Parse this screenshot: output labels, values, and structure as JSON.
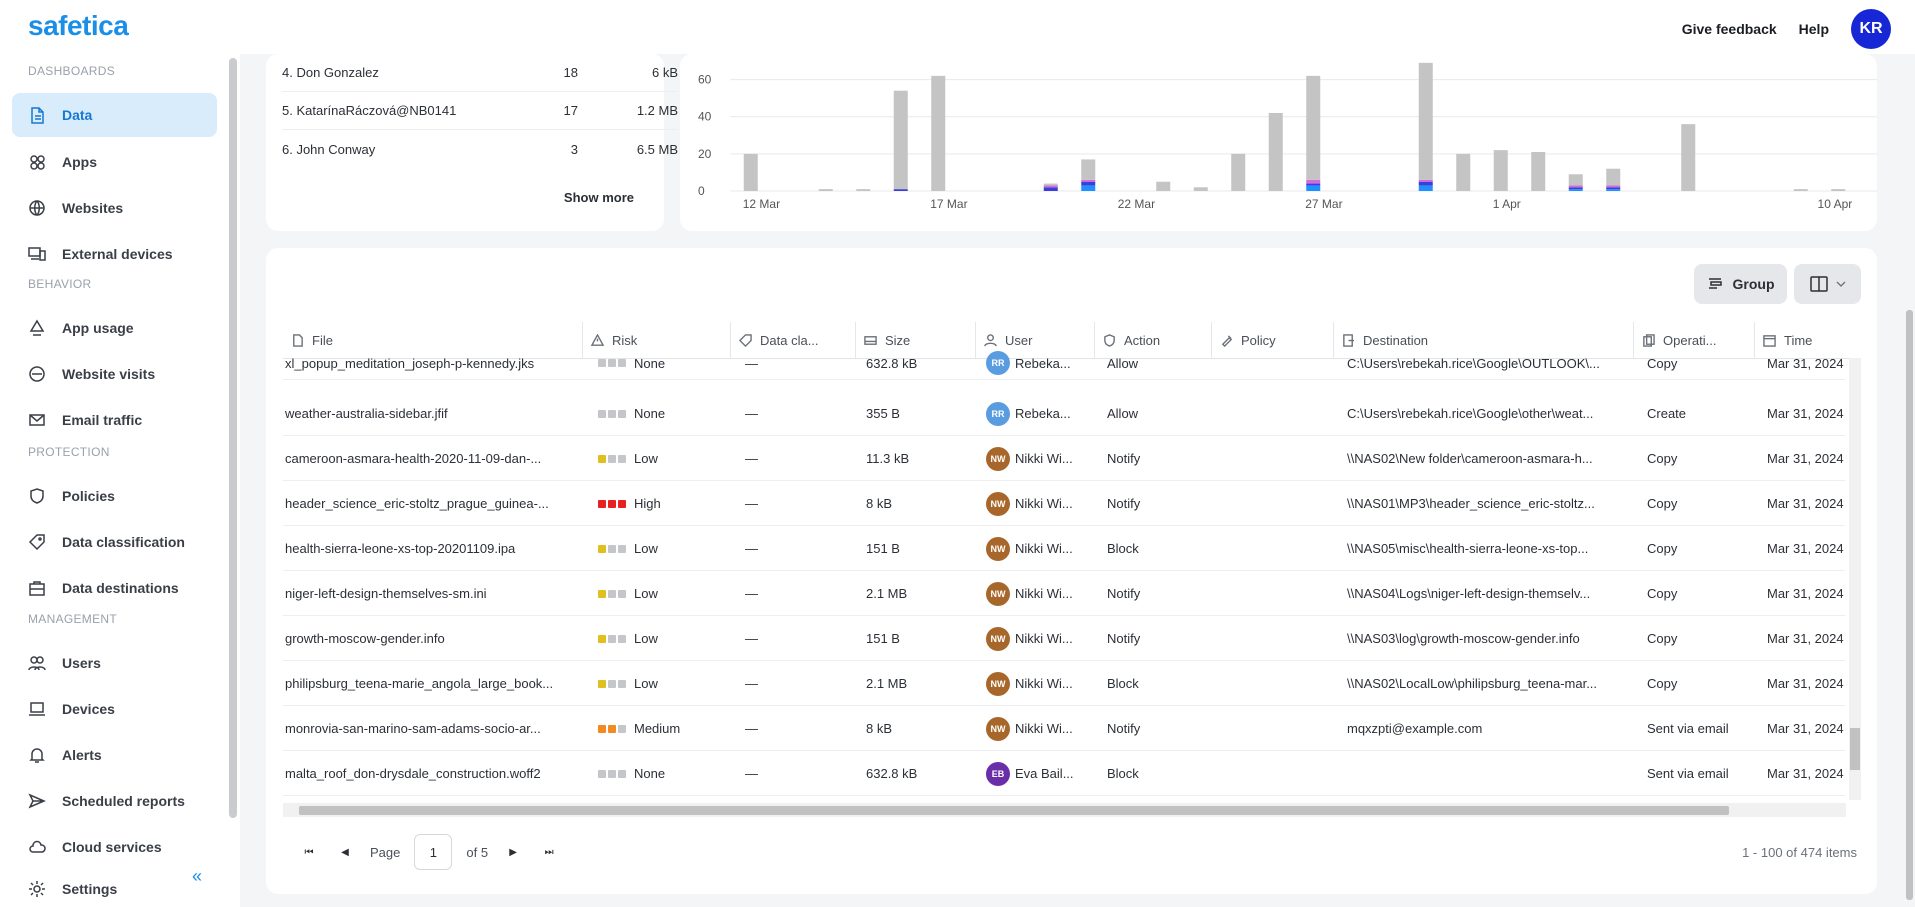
{
  "app": {
    "logo": "safetica",
    "feedback": "Give feedback",
    "help": "Help",
    "avatar": "KR"
  },
  "colors": {
    "accent": "#1b8fe8",
    "active_bg": "#d8ecfb",
    "avatar": "#1727d6"
  },
  "sidebar": {
    "sections": {
      "dashboards": "DASHBOARDS",
      "behavior": "BEHAVIOR",
      "protection": "PROTECTION",
      "management": "MANAGEMENT"
    },
    "items": [
      {
        "label": "Data",
        "icon": "document-icon"
      },
      {
        "label": "Apps",
        "icon": "apps-icon"
      },
      {
        "label": "Websites",
        "icon": "globe-icon"
      },
      {
        "label": "External devices",
        "icon": "devices-icon"
      },
      {
        "label": "App usage",
        "icon": "app-usage-icon"
      },
      {
        "label": "Website visits",
        "icon": "browser-icon"
      },
      {
        "label": "Email traffic",
        "icon": "mail-icon"
      },
      {
        "label": "Policies",
        "icon": "shield-icon"
      },
      {
        "label": "Data classification",
        "icon": "tag-icon"
      },
      {
        "label": "Data destinations",
        "icon": "briefcase-icon"
      },
      {
        "label": "Users",
        "icon": "users-icon"
      },
      {
        "label": "Devices",
        "icon": "laptop-icon"
      },
      {
        "label": "Alerts",
        "icon": "bell-icon"
      },
      {
        "label": "Scheduled reports",
        "icon": "send-icon"
      },
      {
        "label": "Cloud services",
        "icon": "cloud-icon"
      },
      {
        "label": "Settings",
        "icon": "gear-icon"
      }
    ]
  },
  "top_users": {
    "rows": [
      {
        "name": "4. Don Gonzalez",
        "count": "18",
        "size": "6 kB"
      },
      {
        "name": "5. KatarínaRáczová@NB0141",
        "count": "17",
        "size": "1.2 MB"
      },
      {
        "name": "6. John Conway",
        "count": "3",
        "size": "6.5 MB"
      }
    ],
    "show_more": "Show more"
  },
  "chart_data": {
    "type": "bar",
    "stacked": true,
    "ylim": [
      0,
      70
    ],
    "yticks": [
      "0",
      "20",
      "40",
      "60"
    ],
    "xtick_labels": [
      "12 Mar",
      "17 Mar",
      "22 Mar",
      "27 Mar",
      "1 Apr",
      "10 Apr"
    ],
    "xtick_index": [
      0,
      5,
      10,
      15,
      20,
      29
    ],
    "categories": [
      "12 Mar",
      "13 Mar",
      "14 Mar",
      "15 Mar",
      "16 Mar",
      "17 Mar",
      "18 Mar",
      "19 Mar",
      "20 Mar",
      "21 Mar",
      "22 Mar",
      "23 Mar",
      "24 Mar",
      "25 Mar",
      "26 Mar",
      "27 Mar",
      "28 Mar",
      "29 Mar",
      "30 Mar",
      "31 Mar",
      "1 Apr",
      "2 Apr",
      "3 Apr",
      "4 Apr",
      "5 Apr",
      "6 Apr",
      "7 Apr",
      "8 Apr",
      "9 Apr",
      "10 Apr"
    ],
    "series": [
      {
        "color": "#1e90ff",
        "values": [
          0,
          0,
          0,
          0,
          0,
          0,
          0,
          0,
          0,
          3,
          0,
          0,
          0,
          0,
          0,
          3,
          0,
          0,
          3,
          0,
          0,
          0,
          1,
          1,
          0,
          0,
          0,
          0,
          0,
          0
        ]
      },
      {
        "color": "#3b3fd8",
        "values": [
          0,
          0,
          0,
          0,
          1,
          0,
          0,
          0,
          2,
          2,
          0,
          0,
          0,
          0,
          0,
          1,
          0,
          0,
          2,
          0,
          0,
          0,
          1,
          1,
          0,
          0,
          0,
          0,
          0,
          0
        ]
      },
      {
        "color": "#d26ad8",
        "values": [
          0,
          0,
          0,
          0,
          0,
          0,
          0,
          0,
          1,
          1,
          0,
          0,
          0,
          0,
          0,
          2,
          0,
          0,
          1,
          0,
          0,
          0,
          1,
          1,
          0,
          0,
          0,
          0,
          0,
          0
        ]
      },
      {
        "color": "#c4c4c4",
        "values": [
          20,
          0,
          1,
          1,
          53,
          62,
          0,
          0,
          1,
          11,
          0,
          5,
          2,
          20,
          42,
          56,
          0,
          0,
          63,
          20,
          22,
          21,
          6,
          9,
          0,
          36,
          0,
          0,
          1,
          1
        ]
      }
    ]
  },
  "table": {
    "group_label": "Group",
    "headers": [
      "File",
      "Risk",
      "Data cla...",
      "Size",
      "User",
      "Action",
      "Policy",
      "Destination",
      "Operati...",
      "Time"
    ],
    "rows": [
      {
        "file": "xl_popup_meditation_joseph-p-kennedy.jks",
        "risk": "None",
        "risk_level": 0,
        "dc": "—",
        "size": "632.8 kB",
        "user_init": "RR",
        "user": "Rebeka...",
        "user_color": "#5a9ce0",
        "action": "Allow",
        "dest": "C:\\Users\\rebekah.rice\\Google\\OUTLOOK\\...",
        "op": "Copy",
        "time": "Mar 31, 2024"
      },
      {
        "file": "weather-australia-sidebar.jfif",
        "risk": "None",
        "risk_level": 0,
        "dc": "—",
        "size": "355 B",
        "user_init": "RR",
        "user": "Rebeka...",
        "user_color": "#5a9ce0",
        "action": "Allow",
        "dest": "C:\\Users\\rebekah.rice\\Google\\other\\weat...",
        "op": "Create",
        "time": "Mar 31, 2024"
      },
      {
        "file": "cameroon-asmara-health-2020-11-09-dan-...",
        "risk": "Low",
        "risk_level": 1,
        "dc": "—",
        "size": "11.3 kB",
        "user_init": "NW",
        "user": "Nikki Wi...",
        "user_color": "#a8672a",
        "action": "Notify",
        "dest": "\\\\NAS02\\New folder\\cameroon-asmara-h...",
        "op": "Copy",
        "time": "Mar 31, 2024"
      },
      {
        "file": "header_science_eric-stoltz_prague_guinea-...",
        "risk": "High",
        "risk_level": 3,
        "dc": "—",
        "size": "8 kB",
        "user_init": "NW",
        "user": "Nikki Wi...",
        "user_color": "#a8672a",
        "action": "Notify",
        "dest": "\\\\NAS01\\MP3\\header_science_eric-stoltz...",
        "op": "Copy",
        "time": "Mar 31, 2024"
      },
      {
        "file": "health-sierra-leone-xs-top-20201109.ipa",
        "risk": "Low",
        "risk_level": 1,
        "dc": "—",
        "size": "151 B",
        "user_init": "NW",
        "user": "Nikki Wi...",
        "user_color": "#a8672a",
        "action": "Block",
        "dest": "\\\\NAS05\\misc\\health-sierra-leone-xs-top...",
        "op": "Copy",
        "time": "Mar 31, 2024"
      },
      {
        "file": "niger-left-design-themselves-sm.ini",
        "risk": "Low",
        "risk_level": 1,
        "dc": "—",
        "size": "2.1 MB",
        "user_init": "NW",
        "user": "Nikki Wi...",
        "user_color": "#a8672a",
        "action": "Notify",
        "dest": "\\\\NAS04\\Logs\\niger-left-design-themselv...",
        "op": "Copy",
        "time": "Mar 31, 2024"
      },
      {
        "file": "growth-moscow-gender.info",
        "risk": "Low",
        "risk_level": 1,
        "dc": "—",
        "size": "151 B",
        "user_init": "NW",
        "user": "Nikki Wi...",
        "user_color": "#a8672a",
        "action": "Notify",
        "dest": "\\\\NAS03\\log\\growth-moscow-gender.info",
        "op": "Copy",
        "time": "Mar 31, 2024"
      },
      {
        "file": "philipsburg_teena-marie_angola_large_book...",
        "risk": "Low",
        "risk_level": 1,
        "dc": "—",
        "size": "2.1 MB",
        "user_init": "NW",
        "user": "Nikki Wi...",
        "user_color": "#a8672a",
        "action": "Block",
        "dest": "\\\\NAS02\\LocalLow\\philipsburg_teena-mar...",
        "op": "Copy",
        "time": "Mar 31, 2024"
      },
      {
        "file": "monrovia-san-marino-sam-adams-socio-ar...",
        "risk": "Medium",
        "risk_level": 2,
        "dc": "—",
        "size": "8 kB",
        "user_init": "NW",
        "user": "Nikki Wi...",
        "user_color": "#a8672a",
        "action": "Notify",
        "dest": "mqxzpti@example.com",
        "op": "Sent via email",
        "time": "Mar 31, 2024"
      },
      {
        "file": "malta_roof_don-drysdale_construction.woff2",
        "risk": "None",
        "risk_level": 0,
        "dc": "—",
        "size": "632.8 kB",
        "user_init": "EB",
        "user": "Eva Bail...",
        "user_color": "#6a2ea8",
        "action": "Block",
        "dest": "",
        "op": "Sent via email",
        "time": "Mar 31, 2024"
      }
    ]
  },
  "pager": {
    "page_label": "Page",
    "page": "1",
    "of": "of 5",
    "items": "1 - 100 of 474 items"
  }
}
